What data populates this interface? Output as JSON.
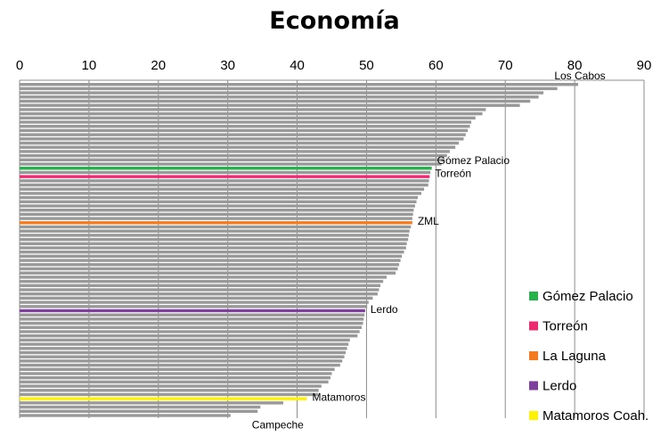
{
  "chart_data": {
    "type": "bar",
    "orientation": "horizontal",
    "title": "Economía",
    "xlim": [
      0,
      90
    ],
    "x_ticks": [
      "0",
      "10",
      "20",
      "30",
      "40",
      "50",
      "60",
      "70",
      "80",
      "90"
    ],
    "grid": true,
    "bar_color": "#999999",
    "values": [
      80.5,
      77.5,
      75.5,
      74.8,
      73.6,
      72.1,
      67.2,
      66.7,
      65.7,
      65.1,
      64.9,
      64.6,
      64.3,
      64.0,
      63.3,
      62.8,
      62.0,
      61.6,
      61.2,
      60.8,
      59.4,
      59.2,
      59.1,
      59.0,
      58.9,
      58.3,
      57.9,
      57.4,
      57.2,
      57.0,
      56.8,
      56.7,
      56.6,
      56.6,
      56.4,
      56.2,
      56.1,
      56.0,
      55.8,
      55.7,
      55.4,
      55.1,
      54.9,
      54.7,
      54.5,
      54.2,
      52.9,
      52.4,
      52.0,
      51.8,
      51.6,
      50.9,
      50.3,
      50.1,
      49.8,
      49.7,
      49.6,
      49.5,
      49.3,
      49.0,
      48.7,
      47.6,
      47.4,
      47.2,
      47.0,
      46.8,
      46.5,
      46.2,
      45.4,
      45.0,
      44.8,
      44.5,
      43.5,
      43.1,
      43.0,
      41.4,
      38.0,
      34.7,
      34.3,
      30.4
    ],
    "highlights": [
      {
        "index": 20,
        "color": "#27b34b",
        "label": "Gómez Palacio",
        "legend": "Gómez Palacio"
      },
      {
        "index": 22,
        "color": "#ee2a6e",
        "label": "Torreón",
        "legend": "Torreón"
      },
      {
        "index": 33,
        "color": "#f47b20",
        "label": "ZML",
        "legend": "La Laguna"
      },
      {
        "index": 54,
        "color": "#7e3f9c",
        "label": "Lerdo",
        "legend": "Lerdo"
      },
      {
        "index": 75,
        "color": "#fff200",
        "label": "Matamoros",
        "legend": "Matamoros Coah."
      }
    ],
    "annotations": [
      {
        "index": 0,
        "label": "Los Cabos"
      },
      {
        "index": 79,
        "label": "Campeche"
      }
    ]
  }
}
